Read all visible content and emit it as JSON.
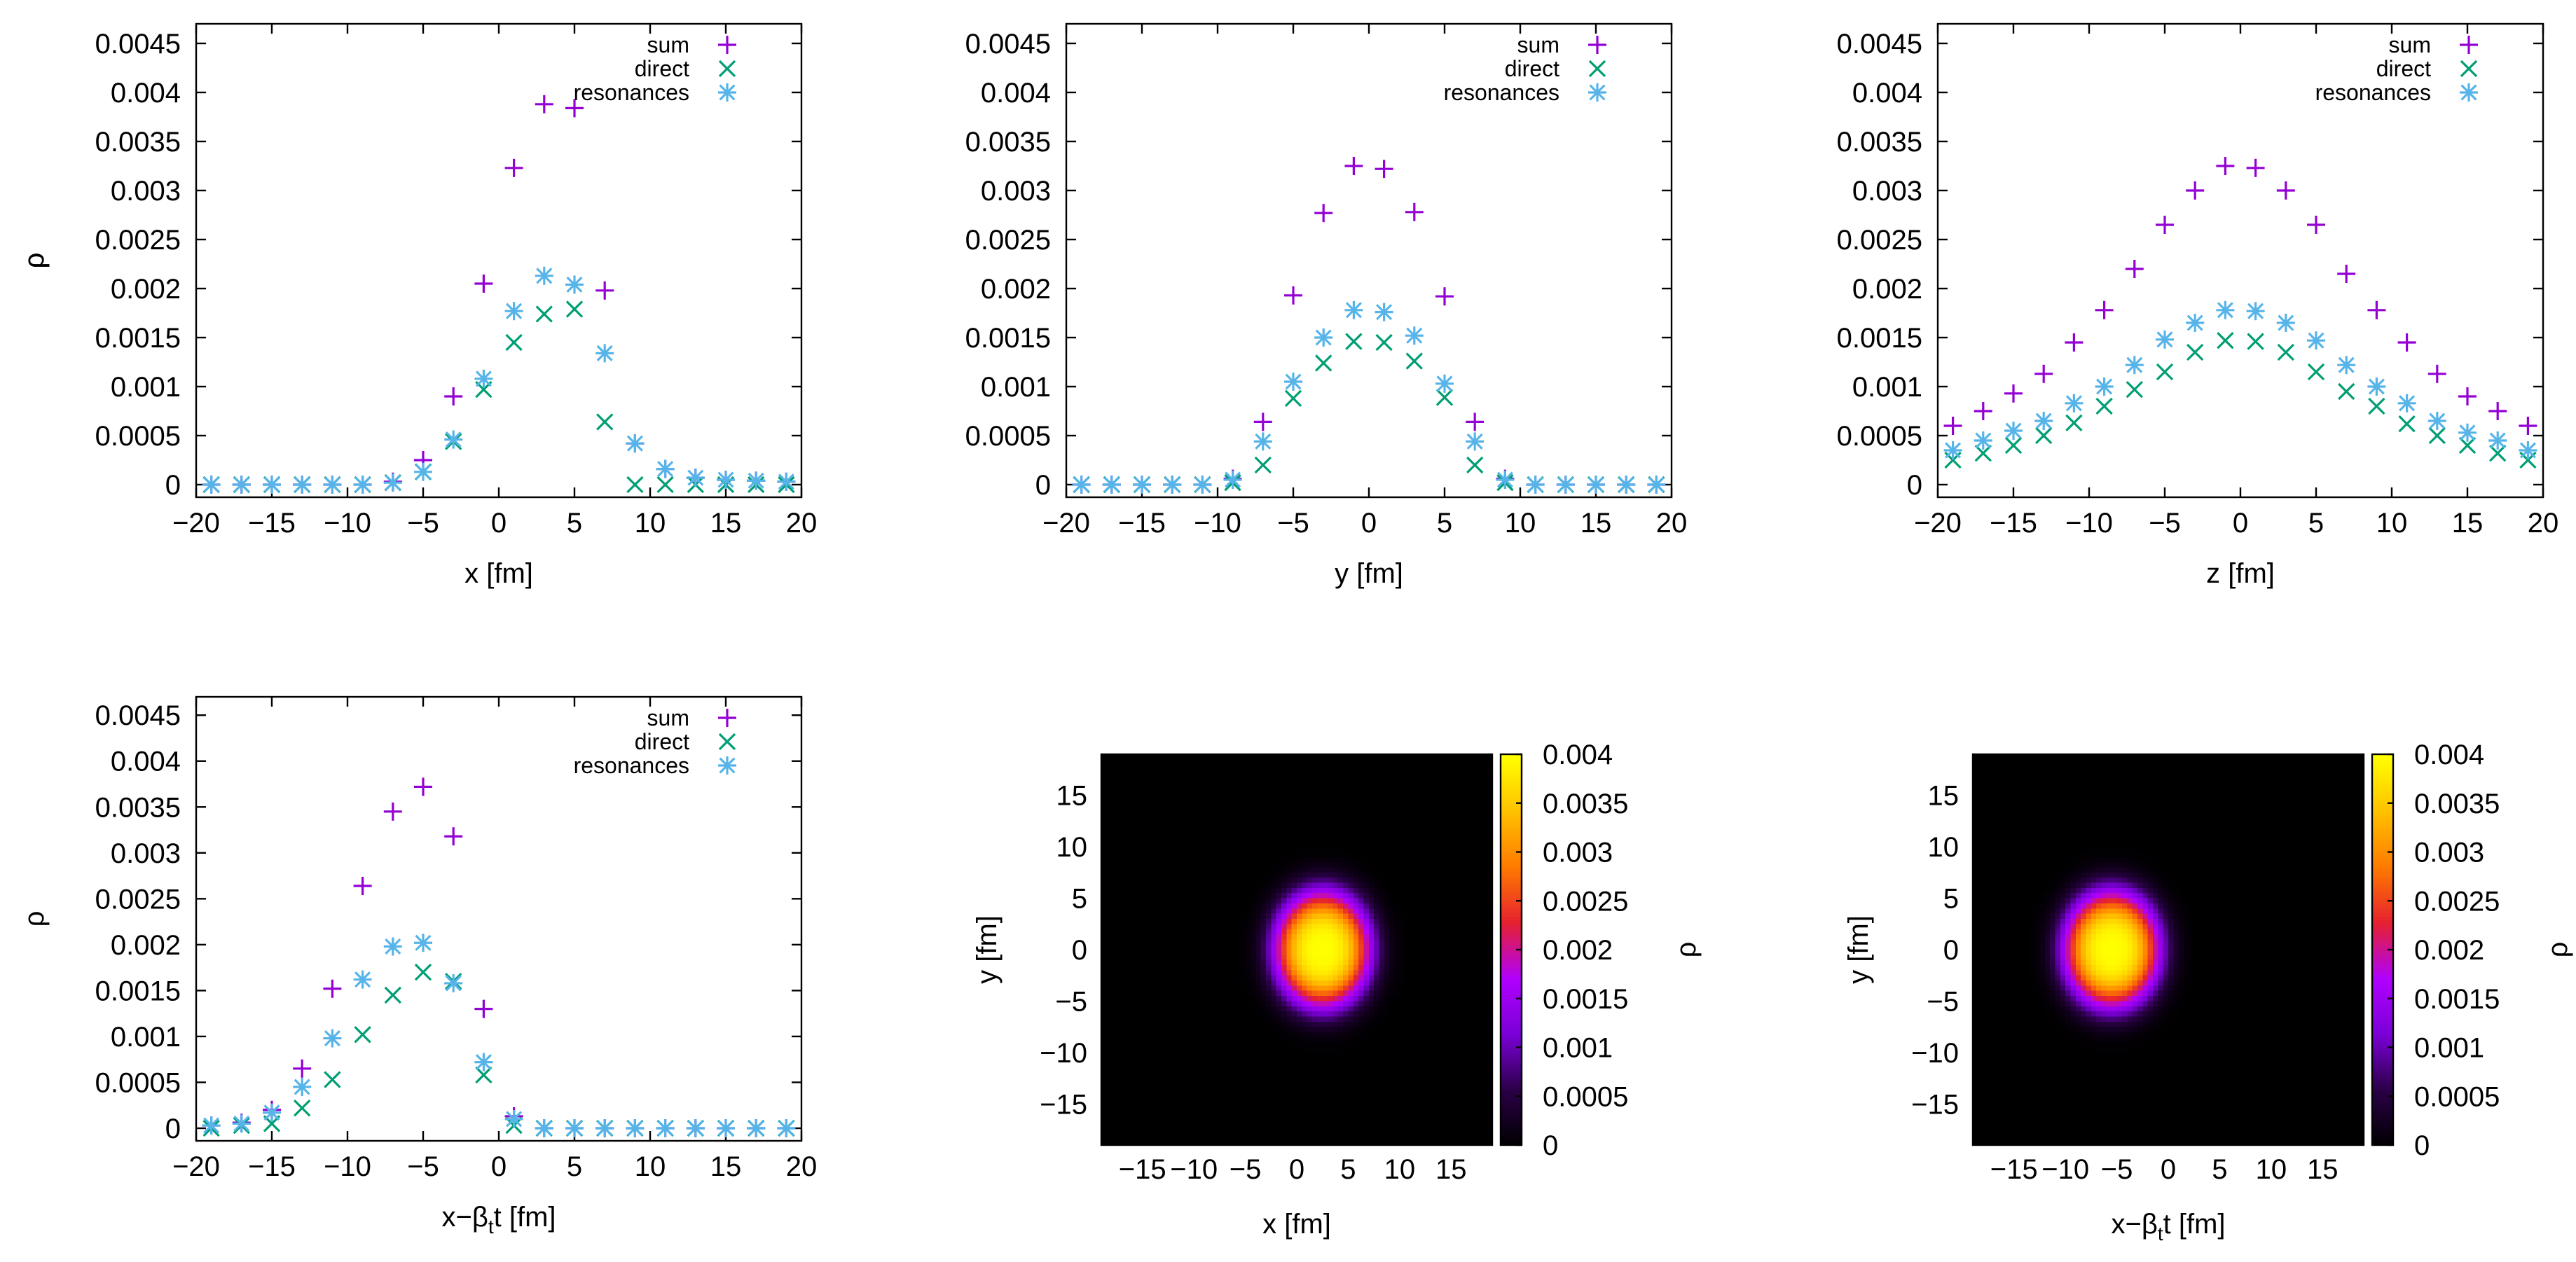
{
  "colors": {
    "sum": "#9400d3",
    "direct": "#009e73",
    "resonances": "#56b4e9",
    "colormap": [
      "#000000",
      "#2a0046",
      "#7a00d6",
      "#b000ff",
      "#e52030",
      "#ff7a00",
      "#ffc100",
      "#ffff00"
    ]
  },
  "chart_data": [
    {
      "id": "panel-x",
      "type": "scatter",
      "xlabel": "x [fm]",
      "ylabel": "ρ",
      "xlim": [
        -20,
        20
      ],
      "ylim": [
        0,
        0.0047
      ],
      "xticks": [
        "−20",
        "−15",
        "−10",
        "−5",
        "0",
        "5",
        "10",
        "15",
        "20"
      ],
      "xtick_values": [
        -20,
        -15,
        -10,
        -5,
        0,
        5,
        10,
        15,
        20
      ],
      "yticks": [
        "0",
        "0.0005",
        "0.001",
        "0.0015",
        "0.002",
        "0.0025",
        "0.003",
        "0.0035",
        "0.004",
        "0.0045"
      ],
      "ytick_values": [
        0,
        0.0005,
        0.001,
        0.0015,
        0.002,
        0.0025,
        0.003,
        0.0035,
        0.004,
        0.0045
      ],
      "legend_position": "top-right",
      "x": [
        -19,
        -17,
        -15,
        -13,
        -11,
        -9,
        -7,
        -5,
        -3,
        -1,
        1,
        3,
        5,
        7,
        9,
        11,
        13,
        15,
        17,
        19
      ],
      "series": [
        {
          "name": "sum",
          "marker": "plus",
          "values": [
            0,
            0,
            0,
            0,
            0,
            0,
            3e-05,
            0.00025,
            0.0009,
            0.00205,
            0.00323,
            0.00388,
            0.00384,
            0.00198,
            0.00042,
            0.00016,
            7e-05,
            5e-05,
            4e-05,
            3e-05
          ]
        },
        {
          "name": "direct",
          "marker": "x",
          "values": [
            0,
            0,
            0,
            0,
            0,
            0,
            2e-05,
            0.00013,
            0.00044,
            0.00097,
            0.00145,
            0.00174,
            0.00179,
            0.00064,
            0,
            0,
            0,
            0,
            0,
            0
          ]
        },
        {
          "name": "resonances",
          "marker": "star",
          "values": [
            0,
            0,
            0,
            0,
            0,
            0,
            2e-05,
            0.00013,
            0.00046,
            0.00108,
            0.00177,
            0.00213,
            0.00204,
            0.00134,
            0.00042,
            0.00016,
            7e-05,
            5e-05,
            4e-05,
            3e-05
          ]
        }
      ]
    },
    {
      "id": "panel-y",
      "type": "scatter",
      "xlabel": "y [fm]",
      "ylabel": "ρ",
      "xlim": [
        -20,
        20
      ],
      "ylim": [
        0,
        0.0047
      ],
      "xticks": [
        "−20",
        "−15",
        "−10",
        "−5",
        "0",
        "5",
        "10",
        "15",
        "20"
      ],
      "xtick_values": [
        -20,
        -15,
        -10,
        -5,
        0,
        5,
        10,
        15,
        20
      ],
      "yticks": [
        "0",
        "0.0005",
        "0.001",
        "0.0015",
        "0.002",
        "0.0025",
        "0.003",
        "0.0035",
        "0.004",
        "0.0045"
      ],
      "ytick_values": [
        0,
        0.0005,
        0.001,
        0.0015,
        0.002,
        0.0025,
        0.003,
        0.0035,
        0.004,
        0.0045
      ],
      "legend_position": "top-right",
      "x": [
        -19,
        -17,
        -15,
        -13,
        -11,
        -9,
        -7,
        -5,
        -3,
        -1,
        1,
        3,
        5,
        7,
        9,
        11,
        13,
        15,
        17,
        19
      ],
      "series": [
        {
          "name": "sum",
          "marker": "plus",
          "values": [
            0,
            0,
            0,
            0,
            0,
            6e-05,
            0.00064,
            0.00193,
            0.00277,
            0.00325,
            0.00322,
            0.00278,
            0.00192,
            0.00064,
            6e-05,
            0,
            0,
            0,
            0,
            0
          ]
        },
        {
          "name": "direct",
          "marker": "x",
          "values": [
            0,
            0,
            0,
            0,
            0,
            2e-05,
            0.0002,
            0.00088,
            0.00124,
            0.00146,
            0.00145,
            0.00126,
            0.00089,
            0.0002,
            2e-05,
            0,
            0,
            0,
            0,
            0
          ]
        },
        {
          "name": "resonances",
          "marker": "star",
          "values": [
            0,
            0,
            0,
            0,
            0,
            5e-05,
            0.00044,
            0.00105,
            0.0015,
            0.00178,
            0.00176,
            0.00152,
            0.00103,
            0.00044,
            5e-05,
            0,
            0,
            0,
            0,
            0
          ]
        }
      ]
    },
    {
      "id": "panel-z",
      "type": "scatter",
      "xlabel": "z [fm]",
      "ylabel": "ρ",
      "xlim": [
        -20,
        20
      ],
      "ylim": [
        0,
        0.0047
      ],
      "xticks": [
        "−20",
        "−15",
        "−10",
        "−5",
        "0",
        "5",
        "10",
        "15",
        "20"
      ],
      "xtick_values": [
        -20,
        -15,
        -10,
        -5,
        0,
        5,
        10,
        15,
        20
      ],
      "yticks": [
        "0",
        "0.0005",
        "0.001",
        "0.0015",
        "0.002",
        "0.0025",
        "0.003",
        "0.0035",
        "0.004",
        "0.0045"
      ],
      "ytick_values": [
        0,
        0.0005,
        0.001,
        0.0015,
        0.002,
        0.0025,
        0.003,
        0.0035,
        0.004,
        0.0045
      ],
      "legend_position": "top-right",
      "x": [
        -19,
        -17,
        -15,
        -13,
        -11,
        -9,
        -7,
        -5,
        -3,
        -1,
        1,
        3,
        5,
        7,
        9,
        11,
        13,
        15,
        17,
        19
      ],
      "series": [
        {
          "name": "sum",
          "marker": "plus",
          "values": [
            0.0006,
            0.00075,
            0.00093,
            0.00113,
            0.00145,
            0.00178,
            0.0022,
            0.00265,
            0.003,
            0.00325,
            0.00323,
            0.003,
            0.00265,
            0.00215,
            0.00178,
            0.00145,
            0.00113,
            0.0009,
            0.00075,
            0.0006
          ]
        },
        {
          "name": "direct",
          "marker": "x",
          "values": [
            0.00025,
            0.00032,
            0.0004,
            0.0005,
            0.00063,
            0.0008,
            0.00097,
            0.00115,
            0.00135,
            0.00147,
            0.00146,
            0.00135,
            0.00115,
            0.00095,
            0.0008,
            0.00062,
            0.0005,
            0.0004,
            0.00032,
            0.00025
          ]
        },
        {
          "name": "resonances",
          "marker": "star",
          "values": [
            0.00035,
            0.00045,
            0.00055,
            0.00065,
            0.00083,
            0.001,
            0.00122,
            0.00148,
            0.00165,
            0.00178,
            0.00177,
            0.00165,
            0.00147,
            0.00122,
            0.001,
            0.00083,
            0.00065,
            0.00053,
            0.00045,
            0.00035
          ]
        }
      ]
    },
    {
      "id": "panel-xbt",
      "type": "scatter",
      "xlabel_base": "x−β",
      "xlabel_sub": "t",
      "xlabel_tail": "t [fm]",
      "ylabel": "ρ",
      "xlim": [
        -20,
        20
      ],
      "ylim": [
        0,
        0.0047
      ],
      "xticks": [
        "−20",
        "−15",
        "−10",
        "−5",
        "0",
        "5",
        "10",
        "15",
        "20"
      ],
      "xtick_values": [
        -20,
        -15,
        -10,
        -5,
        0,
        5,
        10,
        15,
        20
      ],
      "yticks": [
        "0",
        "0.0005",
        "0.001",
        "0.0015",
        "0.002",
        "0.0025",
        "0.003",
        "0.0035",
        "0.004",
        "0.0045"
      ],
      "ytick_values": [
        0,
        0.0005,
        0.001,
        0.0015,
        0.002,
        0.0025,
        0.003,
        0.0035,
        0.004,
        0.0045
      ],
      "legend_position": "top-right",
      "x": [
        -19,
        -17,
        -15,
        -13,
        -11,
        -9,
        -7,
        -5,
        -3,
        -1,
        1,
        3,
        5,
        7,
        9,
        11,
        13,
        15,
        17,
        19
      ],
      "series": [
        {
          "name": "sum",
          "marker": "plus",
          "values": [
            3e-05,
            6e-05,
            0.0002,
            0.00065,
            0.00152,
            0.00264,
            0.00345,
            0.00372,
            0.00318,
            0.0013,
            0.00013,
            0,
            0,
            0,
            0,
            0,
            0,
            0,
            0,
            0
          ]
        },
        {
          "name": "direct",
          "marker": "x",
          "values": [
            0,
            3e-05,
            5e-05,
            0.00022,
            0.00053,
            0.00102,
            0.00145,
            0.0017,
            0.0016,
            0.00058,
            3e-05,
            0,
            0,
            0,
            0,
            0,
            0,
            0,
            0,
            0
          ]
        },
        {
          "name": "resonances",
          "marker": "star",
          "values": [
            3e-05,
            5e-05,
            0.00017,
            0.00045,
            0.00098,
            0.00162,
            0.00198,
            0.00202,
            0.00158,
            0.00072,
            0.0001,
            0,
            0,
            0,
            0,
            0,
            0,
            0,
            0,
            0
          ]
        }
      ]
    },
    {
      "id": "heatmap-xy",
      "type": "heatmap",
      "xlabel": "x [fm]",
      "ylabel": "y [fm]",
      "cblabel": "ρ",
      "xlim": [
        -19,
        19
      ],
      "ylim": [
        -19,
        19
      ],
      "xticks": [
        "−15",
        "−10",
        "−5",
        "0",
        "5",
        "10",
        "15"
      ],
      "xtick_values": [
        -15,
        -10,
        -5,
        0,
        5,
        10,
        15
      ],
      "yticks": [
        "−15",
        "−10",
        "−5",
        "0",
        "5",
        "10",
        "15"
      ],
      "ytick_values": [
        -15,
        -10,
        -5,
        0,
        5,
        10,
        15
      ],
      "cbticks": [
        "0",
        "0.0005",
        "0.001",
        "0.0015",
        "0.002",
        "0.0025",
        "0.003",
        "0.0035",
        "0.004"
      ],
      "cbtick_values": [
        0,
        0.0005,
        0.001,
        0.0015,
        0.002,
        0.0025,
        0.003,
        0.0035,
        0.004
      ],
      "cbrange": [
        0,
        0.004
      ],
      "peak": 0.004,
      "center": [
        2.5,
        0
      ],
      "width": [
        4.6,
        5.6
      ]
    },
    {
      "id": "heatmap-xbt",
      "type": "heatmap",
      "xlabel_base": "x−β",
      "xlabel_sub": "t",
      "xlabel_tail": "t [fm]",
      "ylabel": "y [fm]",
      "cblabel": "ρ",
      "xlim": [
        -19,
        19
      ],
      "ylim": [
        -19,
        19
      ],
      "xticks": [
        "−15",
        "−10",
        "−5",
        "0",
        "5",
        "10",
        "15"
      ],
      "xtick_values": [
        -15,
        -10,
        -5,
        0,
        5,
        10,
        15
      ],
      "yticks": [
        "−15",
        "−10",
        "−5",
        "0",
        "5",
        "10",
        "15"
      ],
      "ytick_values": [
        -15,
        -10,
        -5,
        0,
        5,
        10,
        15
      ],
      "cbticks": [
        "0",
        "0.0005",
        "0.001",
        "0.0015",
        "0.002",
        "0.0025",
        "0.003",
        "0.0035",
        "0.004"
      ],
      "cbtick_values": [
        0,
        0.0005,
        0.001,
        0.0015,
        0.002,
        0.0025,
        0.003,
        0.0035,
        0.004
      ],
      "cbrange": [
        0,
        0.004
      ],
      "peak": 0.004,
      "center": [
        -5.5,
        0
      ],
      "width": [
        4.6,
        5.6
      ]
    }
  ]
}
